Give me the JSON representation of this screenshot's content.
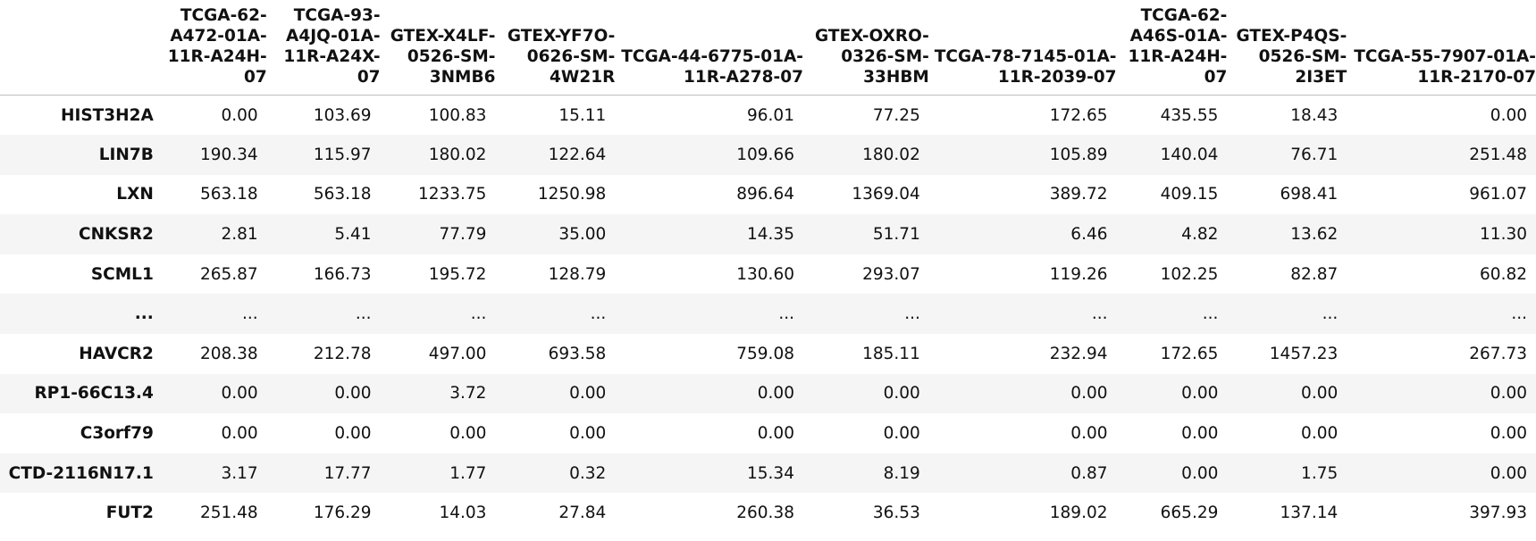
{
  "table": {
    "columns": [
      "TCGA-62-A472-01A-11R-A24H-07",
      "TCGA-93-A4JQ-01A-11R-A24X-07",
      "GTEX-X4LF-0526-SM-3NMB6",
      "GTEX-YF7O-0626-SM-4W21R",
      "TCGA-44-6775-01A-11R-A278-07",
      "GTEX-OXRO-0326-SM-33HBM",
      "TCGA-78-7145-01A-11R-2039-07",
      "TCGA-62-A46S-01A-11R-A24H-07",
      "GTEX-P4QS-0526-SM-2I3ET",
      "TCGA-55-7907-01A-11R-2170-07"
    ],
    "rows": [
      {
        "index": "HIST3H2A",
        "values": [
          "0.00",
          "103.69",
          "100.83",
          "15.11",
          "96.01",
          "77.25",
          "172.65",
          "435.55",
          "18.43",
          "0.00"
        ]
      },
      {
        "index": "LIN7B",
        "values": [
          "190.34",
          "115.97",
          "180.02",
          "122.64",
          "109.66",
          "180.02",
          "105.89",
          "140.04",
          "76.71",
          "251.48"
        ]
      },
      {
        "index": "LXN",
        "values": [
          "563.18",
          "563.18",
          "1233.75",
          "1250.98",
          "896.64",
          "1369.04",
          "389.72",
          "409.15",
          "698.41",
          "961.07"
        ]
      },
      {
        "index": "CNKSR2",
        "values": [
          "2.81",
          "5.41",
          "77.79",
          "35.00",
          "14.35",
          "51.71",
          "6.46",
          "4.82",
          "13.62",
          "11.30"
        ]
      },
      {
        "index": "SCML1",
        "values": [
          "265.87",
          "166.73",
          "195.72",
          "128.79",
          "130.60",
          "293.07",
          "119.26",
          "102.25",
          "82.87",
          "60.82"
        ]
      },
      {
        "index": "...",
        "values": [
          "...",
          "...",
          "...",
          "...",
          "...",
          "...",
          "...",
          "...",
          "...",
          "..."
        ]
      },
      {
        "index": "HAVCR2",
        "values": [
          "208.38",
          "212.78",
          "497.00",
          "693.58",
          "759.08",
          "185.11",
          "232.94",
          "172.65",
          "1457.23",
          "267.73"
        ]
      },
      {
        "index": "RP1-66C13.4",
        "values": [
          "0.00",
          "0.00",
          "3.72",
          "0.00",
          "0.00",
          "0.00",
          "0.00",
          "0.00",
          "0.00",
          "0.00"
        ]
      },
      {
        "index": "C3orf79",
        "values": [
          "0.00",
          "0.00",
          "0.00",
          "0.00",
          "0.00",
          "0.00",
          "0.00",
          "0.00",
          "0.00",
          "0.00"
        ]
      },
      {
        "index": "CTD-2116N17.1",
        "values": [
          "3.17",
          "17.77",
          "1.77",
          "0.32",
          "15.34",
          "8.19",
          "0.87",
          "0.00",
          "1.75",
          "0.00"
        ]
      },
      {
        "index": "FUT2",
        "values": [
          "251.48",
          "176.29",
          "14.03",
          "27.84",
          "260.38",
          "36.53",
          "189.02",
          "665.29",
          "137.14",
          "397.93"
        ]
      }
    ]
  },
  "colors": {
    "stripe": "#f5f5f5",
    "header_rule": "#bdbdbd",
    "text": "#111111"
  }
}
